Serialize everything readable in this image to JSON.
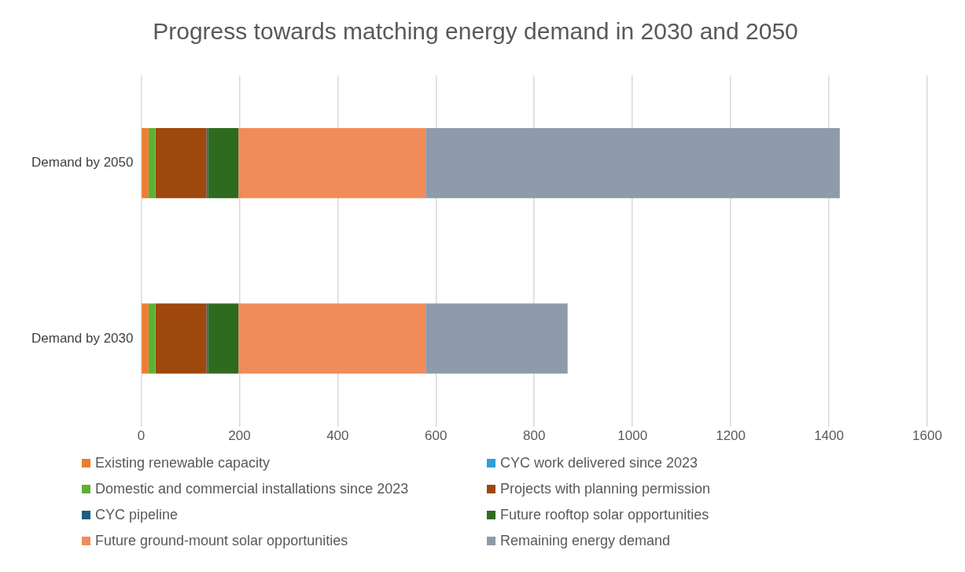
{
  "chart_data": {
    "type": "bar",
    "orientation": "horizontal",
    "stacked": true,
    "title": "Progress towards matching energy demand in 2030 and 2050",
    "categories": [
      "Demand by 2050",
      "Demand by 2030"
    ],
    "series": [
      {
        "name": "Existing renewable capacity",
        "color": "#ed7d31",
        "values": [
          15,
          15
        ]
      },
      {
        "name": "CYC work delivered since 2023",
        "color": "#2e9fd8",
        "values": [
          null,
          null
        ]
      },
      {
        "name": "Domestic and commercial installations since 2023",
        "color": "#5eb135",
        "values": [
          14,
          14
        ]
      },
      {
        "name": "Projects with planning permission",
        "color": "#9e480e",
        "values": [
          104,
          104
        ]
      },
      {
        "name": "CYC pipeline",
        "color": "#1f5e7e",
        "values": [
          3,
          3
        ]
      },
      {
        "name": "Future rooftop solar opportunities",
        "color": "#2f6b1f",
        "values": [
          62,
          62
        ]
      },
      {
        "name": "Future ground-mount solar opportunities",
        "color": "#f08c5a",
        "values": [
          381,
          381
        ]
      },
      {
        "name": "Remaining energy demand",
        "color": "#8f9aaa",
        "values": [
          843,
          289
        ]
      }
    ],
    "xlim": [
      0,
      1600
    ],
    "xticks": [
      0,
      200,
      400,
      600,
      800,
      1000,
      1200,
      1400,
      1600
    ],
    "grid": "x",
    "legend": "bottom"
  }
}
